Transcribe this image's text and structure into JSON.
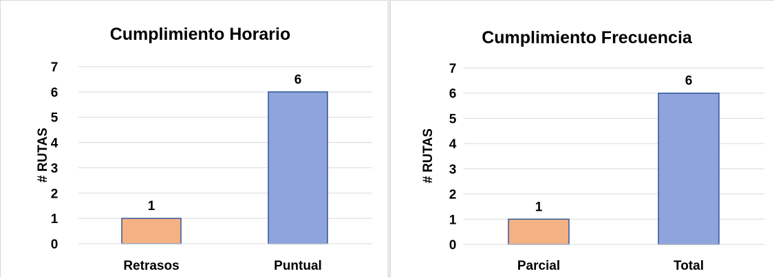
{
  "chart_data": [
    {
      "type": "bar",
      "title": "Cumplimiento Horario",
      "xlabel": "",
      "ylabel": "# RUTAS",
      "ylim": [
        0,
        7
      ],
      "yticks": [
        "0",
        "1",
        "2",
        "3",
        "4",
        "5",
        "6",
        "7"
      ],
      "categories": [
        "Retrasos",
        "Puntual"
      ],
      "values": [
        1,
        6
      ],
      "data_labels": [
        "1",
        "6"
      ],
      "bar_colors": [
        "#f4b183",
        "#8fa4dc"
      ],
      "bar_border_colors": [
        "#2f5597",
        "#2f5597"
      ],
      "grid": true,
      "legend": "none"
    },
    {
      "type": "bar",
      "title": "Cumplimiento Frecuencia",
      "xlabel": "",
      "ylabel": "# RUTAS",
      "ylim": [
        0,
        7
      ],
      "yticks": [
        "0",
        "1",
        "2",
        "3",
        "4",
        "5",
        "6",
        "7"
      ],
      "categories": [
        "Parcial",
        "Total"
      ],
      "values": [
        1,
        6
      ],
      "data_labels": [
        "1",
        "6"
      ],
      "bar_colors": [
        "#f4b183",
        "#8fa4dc"
      ],
      "bar_border_colors": [
        "#2f5597",
        "#2f5597"
      ],
      "grid": true,
      "legend": "none"
    }
  ]
}
